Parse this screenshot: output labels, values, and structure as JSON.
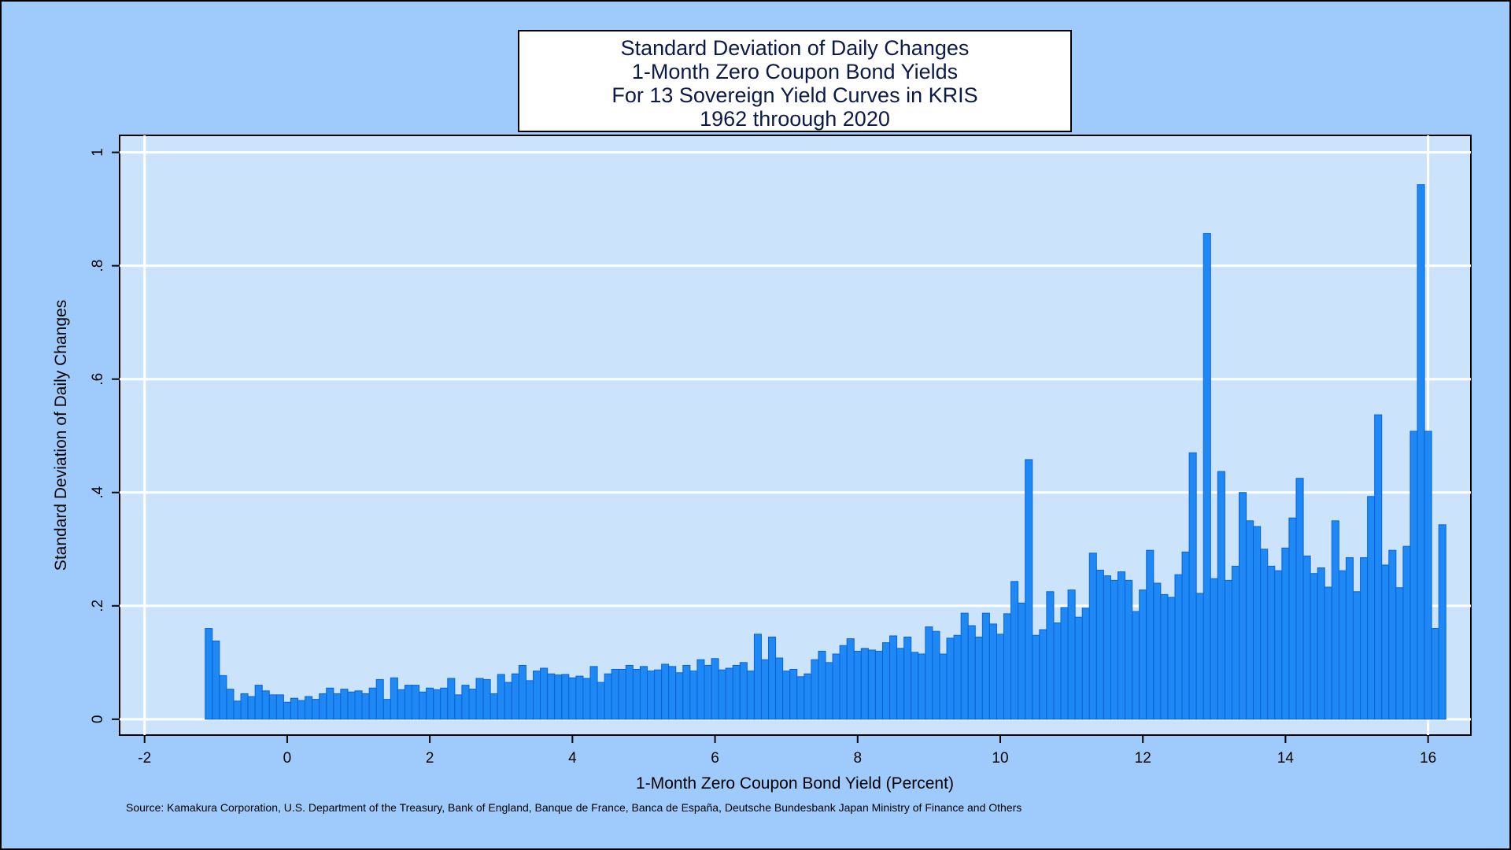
{
  "chart_data": {
    "type": "bar",
    "title": [
      "Standard Deviation of Daily Changes",
      "1-Month Zero Coupon Bond Yields",
      "For 13 Sovereign Yield Curves in KRIS",
      "1962 throough 2020"
    ],
    "xlabel": "1-Month Zero Coupon Bond Yield (Percent)",
    "ylabel": "Standard Deviation of Daily Changes",
    "xlim": [
      -2.35,
      16.6
    ],
    "ylim": [
      -0.028,
      1.03
    ],
    "x_ticks": [
      -2,
      0,
      2,
      4,
      6,
      8,
      10,
      12,
      14,
      16
    ],
    "x_tick_labels": [
      "-2",
      "0",
      "2",
      "4",
      "6",
      "8",
      "10",
      "12",
      "14",
      "16"
    ],
    "y_ticks": [
      0,
      0.2,
      0.4,
      0.6,
      0.8,
      1
    ],
    "y_tick_labels": [
      "0",
      ".2",
      ".4",
      ".6",
      ".8",
      "1"
    ],
    "grid": true,
    "bar_width": 0.1,
    "series": [
      {
        "x_start": -1.1,
        "step": 0.1,
        "values": [
          0.16,
          0.138,
          0.077,
          0.053,
          0.032,
          0.045,
          0.04,
          0.06,
          0.05,
          0.043,
          0.043,
          0.03,
          0.037,
          0.033,
          0.04,
          0.035,
          0.045,
          0.055,
          0.045,
          0.053,
          0.048,
          0.05,
          0.045,
          0.055,
          0.07,
          0.035,
          0.073,
          0.052,
          0.06,
          0.06,
          0.048,
          0.055,
          0.052,
          0.055,
          0.072,
          0.043,
          0.06,
          0.053,
          0.072,
          0.07,
          0.045,
          0.079,
          0.065,
          0.08,
          0.095,
          0.068,
          0.085,
          0.09,
          0.08,
          0.078,
          0.079,
          0.073,
          0.076,
          0.072,
          0.093,
          0.065,
          0.08,
          0.088,
          0.088,
          0.095,
          0.088,
          0.093,
          0.085,
          0.087,
          0.097,
          0.093,
          0.082,
          0.095,
          0.085,
          0.105,
          0.095,
          0.107,
          0.087,
          0.09,
          0.095,
          0.1,
          0.085,
          0.15,
          0.105,
          0.145,
          0.108,
          0.085,
          0.088,
          0.075,
          0.08,
          0.105,
          0.12,
          0.1,
          0.115,
          0.13,
          0.142,
          0.12,
          0.125,
          0.122,
          0.12,
          0.135,
          0.147,
          0.125,
          0.145,
          0.118,
          0.115,
          0.163,
          0.155,
          0.115,
          0.143,
          0.148,
          0.187,
          0.165,
          0.145,
          0.187,
          0.168,
          0.15,
          0.186,
          0.243,
          0.205,
          0.458,
          0.148,
          0.158,
          0.225,
          0.17,
          0.197,
          0.228,
          0.18,
          0.196,
          0.293,
          0.263,
          0.253,
          0.245,
          0.26,
          0.245,
          0.19,
          0.228,
          0.298,
          0.24,
          0.22,
          0.215,
          0.255,
          0.295,
          0.47,
          0.222,
          0.857,
          0.248,
          0.437,
          0.245,
          0.27,
          0.4,
          0.35,
          0.34,
          0.3,
          0.27,
          0.262,
          0.302,
          0.355,
          0.425,
          0.288,
          0.257,
          0.267,
          0.233,
          0.35,
          0.262,
          0.285,
          0.225,
          0.285,
          0.393,
          0.537,
          0.272,
          0.298,
          0.232,
          0.305
        ]
      },
      {
        "x_start": 15.8,
        "step": 0.1,
        "values": [
          0.508,
          0.943,
          0.508,
          0.16,
          0.343
        ]
      }
    ]
  },
  "source": "Source: Kamakura Corporation, U.S. Department of the Treasury, Bank of England, Banque de France, Banca de España, Deutsche Bundesbank Japan Ministry of Finance and Others",
  "colors": {
    "background": "#9ecbfb",
    "plot_bg": "#cce4fb",
    "bar_fill": "#1e88f5",
    "bar_edge": "#0b63d6",
    "grid": "#ffffff"
  }
}
